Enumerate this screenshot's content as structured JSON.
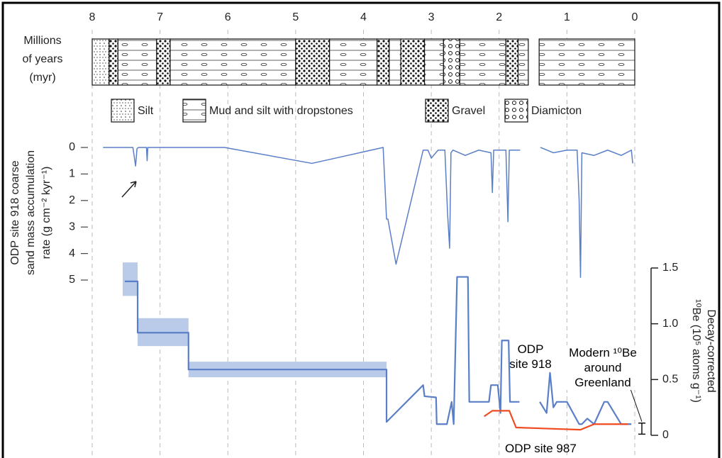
{
  "chart_data": {
    "type": "line",
    "x_label": [
      "Millions",
      "of years",
      "(myr)"
    ],
    "xlim": [
      8,
      0
    ],
    "xticks": [
      8,
      7,
      6,
      5,
      4,
      3,
      2,
      1,
      0
    ],
    "grid": true,
    "lithology": {
      "legend": [
        "Silt",
        "Mud and silt with dropstones",
        "Gravel",
        "Diamicton"
      ],
      "units": [
        {
          "start": 8,
          "end": 7.75,
          "type": 0
        },
        {
          "start": 7.75,
          "end": 7.62,
          "type": 2
        },
        {
          "start": 7.62,
          "end": 7.05,
          "type": 1
        },
        {
          "start": 7.05,
          "end": 6.85,
          "type": 2
        },
        {
          "start": 6.85,
          "end": 5.0,
          "type": 1
        },
        {
          "start": 5.0,
          "end": 4.5,
          "type": 2
        },
        {
          "start": 4.5,
          "end": 3.8,
          "type": 1
        },
        {
          "start": 3.8,
          "end": 3.62,
          "type": 2
        },
        {
          "start": 3.62,
          "end": 3.45,
          "type": 1
        },
        {
          "start": 3.45,
          "end": 3.1,
          "type": 2
        },
        {
          "start": 3.1,
          "end": 2.82,
          "type": 1
        },
        {
          "start": 2.82,
          "end": 2.58,
          "type": 3
        },
        {
          "start": 2.58,
          "end": 1.9,
          "type": 1
        },
        {
          "start": 1.9,
          "end": 1.72,
          "type": 2
        },
        {
          "start": 1.72,
          "end": 1.57,
          "type": 1
        },
        {
          "start": 1.41,
          "end": 0,
          "type": 1
        }
      ]
    },
    "y_label": [
      "ODP site 918 coarse",
      "sand mass accumulation",
      "rate (g cm⁻² kyr⁻¹)"
    ],
    "ylim": [
      0,
      5
    ],
    "yticks": [
      0,
      1,
      2,
      3,
      4,
      5
    ],
    "y2_label": [
      "Decay-corrected",
      "¹⁰Be (10⁵ atoms g⁻¹)"
    ],
    "y2lim": [
      0,
      1.5
    ],
    "y2ticks": [
      0,
      0.5,
      {
        "value": 1,
        "label": "1.0"
      },
      1.5
    ],
    "series": [
      {
        "color": "#5b7fc7",
        "x": [
          7.84,
          7.4,
          7.36,
          7.34,
          7.32,
          7.2,
          7.19,
          7.18,
          6.8,
          6.05,
          4.76,
          3.71,
          3.66,
          3.64,
          3.52,
          3.12,
          3.05,
          3.0,
          2.9,
          2.8,
          2.76,
          2.73,
          2.71,
          2.68,
          2.5,
          2.3,
          2.12,
          2.1,
          2.08,
          1.9,
          1.87,
          1.85,
          1.82,
          1.69,
          1.55,
          1.39,
          1.2,
          1.0,
          0.85,
          0.82,
          0.8,
          0.78,
          0.6,
          0.4,
          0.2,
          0.05,
          0.03
        ],
        "values": [
          0,
          0,
          0.7,
          0.05,
          0,
          0,
          0.5,
          0,
          0,
          0,
          0.6,
          0,
          2.7,
          2.7,
          4.4,
          0.1,
          0.1,
          0.4,
          0.1,
          0.1,
          2.5,
          3.8,
          0.2,
          0.1,
          0.3,
          0.1,
          0.2,
          1.7,
          0.1,
          0.1,
          2.8,
          0.1,
          0.1,
          0.1,
          null,
          0,
          0.2,
          0.1,
          0.1,
          2,
          4.9,
          0.2,
          0.3,
          0.1,
          0.3,
          0.1,
          0.6
        ]
      },
      {
        "name": "ODP site 918",
        "color": "#5b7fc7",
        "axis": "y2",
        "x": [
          7.52,
          7.33,
          7.33,
          6.58,
          6.58,
          3.66,
          3.66,
          3.12,
          3.1,
          2.93,
          2.92,
          2.77,
          2.7,
          2.67,
          2.62,
          2.46,
          2.44,
          2.15,
          2.12,
          2.02,
          1.98,
          1.96,
          1.86,
          1.84,
          1.7,
          1.55,
          1.4,
          1.3,
          1.25,
          1.2,
          1.15,
          1.0,
          0.82,
          0.78,
          0.7,
          0.6,
          0.45,
          0.4,
          0.2,
          0.18,
          0.05
        ],
        "values": [
          1.38,
          1.38,
          0.92,
          0.92,
          0.59,
          0.59,
          0.12,
          0.45,
          0.35,
          0.34,
          0.1,
          0.1,
          0.3,
          0.1,
          1.42,
          1.42,
          0.3,
          0.3,
          0.45,
          0.45,
          0.2,
          0.85,
          0.85,
          0.3,
          0.3,
          null,
          0.3,
          0.2,
          0.56,
          0.25,
          0.3,
          0.3,
          0.1,
          0.1,
          0.15,
          0.1,
          0.3,
          0.3,
          0.1,
          0.1,
          0.1
        ],
        "band": {
          "color": "#b9cbe8",
          "x": [
            7.55,
            7.33,
            7.33,
            6.58,
            6.58,
            3.66
          ],
          "lower": [
            1.25,
            1.25,
            0.8,
            0.8,
            0.52,
            0.52
          ],
          "upper": [
            1.55,
            1.55,
            1.05,
            1.05,
            0.66,
            0.66
          ]
        }
      },
      {
        "name": "ODP site 987",
        "color": "#f04a20",
        "axis": "y2",
        "x": [
          2.22,
          2.1,
          1.85,
          1.75,
          0.8,
          0.6,
          0.3,
          0.1
        ],
        "values": [
          0.17,
          0.22,
          0.22,
          0.07,
          0.05,
          0.1,
          0.1,
          0.1
        ]
      }
    ],
    "annotations": [
      {
        "text": "Modern ¹⁰Be around Greenland",
        "axis": "y2",
        "range": [
          0.01,
          0.11
        ]
      }
    ]
  }
}
